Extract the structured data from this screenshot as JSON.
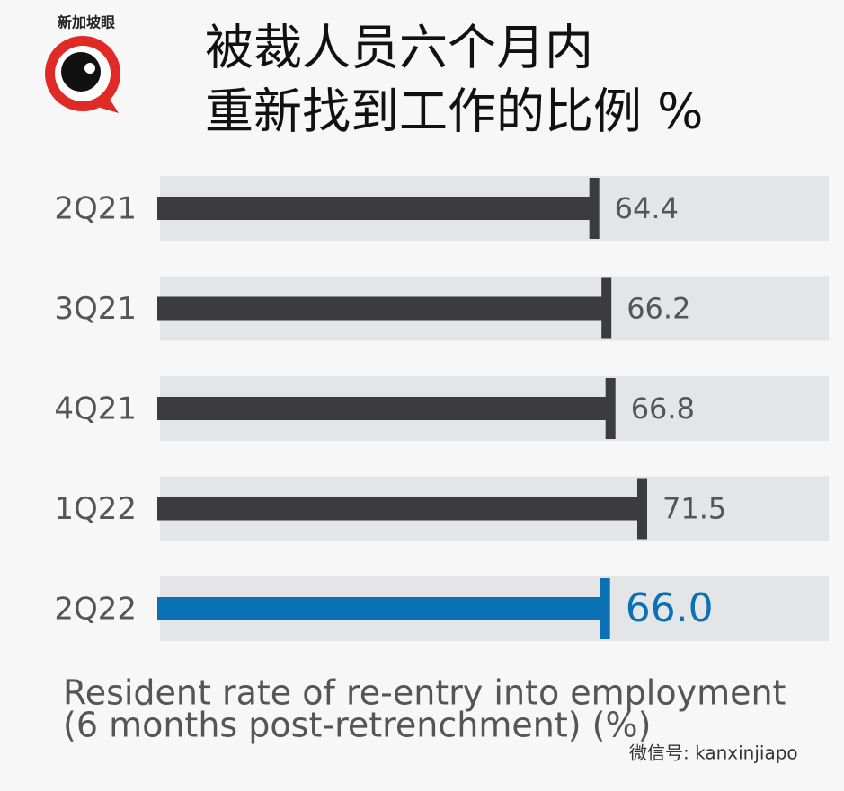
{
  "chart_data": {
    "type": "bar",
    "orientation": "horizontal",
    "title": [
      "被裁人员六个月内",
      "重新找到工作的比例  %"
    ],
    "caption": [
      "Resident rate of re-entry into employment",
      "(6 months post-retrenchment) (%)"
    ],
    "categories": [
      "2Q21",
      "3Q21",
      "4Q21",
      "1Q22",
      "2Q22"
    ],
    "values": [
      64.4,
      66.2,
      66.8,
      71.5,
      66.0
    ],
    "value_labels": [
      "64.4",
      "66.2",
      "66.8",
      "71.5",
      "66.0"
    ],
    "colors": [
      "#3c3c3e",
      "#3c3c3e",
      "#3c3c3e",
      "#3c3c3e",
      "#0a72b4"
    ],
    "logo_text": "新加坡眼",
    "watermark": "微信号: kanxinjiapo"
  }
}
